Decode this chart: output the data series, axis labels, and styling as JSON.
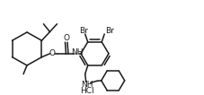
{
  "bg_color": "#ffffff",
  "lc": "#1a1a1a",
  "lw": 1.1,
  "fs": 6.5,
  "xlim": [
    0,
    2.27
  ],
  "ylim": [
    0,
    1.06
  ]
}
